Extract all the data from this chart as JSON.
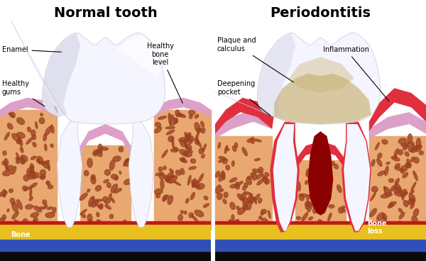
{
  "title_left": "Normal tooth",
  "title_right": "Periodontitis",
  "title_fontsize": 14,
  "title_fontweight": "bold",
  "bg_color": "#ffffff",
  "bone_color": "#E8A870",
  "bone_spot_color": "#9B4020",
  "gum_healthy_color": "#DDA0C8",
  "gum_inflamed_color": "#E03040",
  "tooth_white": "#F5F5FF",
  "tooth_edge": "#C8C8DC",
  "plaque_color": "#C8B070",
  "root_canal_color": "#8B0000",
  "bottom_blue": "#3050B8",
  "bottom_yellow": "#E8C020",
  "bottom_red": "#C01818",
  "bottom_dark": "#0A0A0A",
  "text_color": "#000000",
  "label_enamel": "Enamel",
  "label_healthy_gums": "Healthy\ngums",
  "label_healthy_bone": "Healthy\nbone\nlevel",
  "label_bone_left": "Bone",
  "label_plaque": "Plaque and\ncalculus",
  "label_deepening": "Deepening\npocket",
  "label_inflammation": "Inflammation",
  "label_bone_loss": "Bone\nloss",
  "annotation_lw": 0.8,
  "annotation_dot_size": 4
}
